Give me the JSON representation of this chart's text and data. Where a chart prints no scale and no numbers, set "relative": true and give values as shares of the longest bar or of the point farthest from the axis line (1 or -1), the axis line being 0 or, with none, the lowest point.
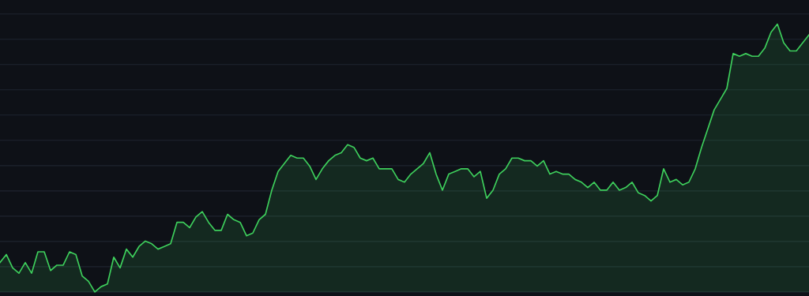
{
  "chart_data": {
    "type": "area",
    "relative": true,
    "grid": "y",
    "categories": [
      null,
      null,
      null,
      null,
      null,
      null,
      null,
      null,
      null,
      null,
      null,
      null,
      null,
      null,
      null,
      null,
      null,
      null,
      null,
      null,
      null,
      null,
      null,
      null,
      null,
      null,
      null,
      null,
      null,
      null,
      null,
      null,
      null,
      null,
      null,
      null,
      null,
      null,
      null,
      null,
      null,
      null,
      null,
      null,
      null,
      null,
      null,
      null,
      null,
      null,
      null,
      null,
      null,
      null,
      null,
      null,
      null,
      null,
      null,
      null,
      null,
      null,
      null,
      null,
      null,
      null,
      null,
      null,
      null,
      null,
      null,
      null,
      null,
      null,
      null,
      null,
      null,
      null,
      null,
      null,
      null,
      null,
      null,
      null,
      null,
      null,
      null,
      null,
      null,
      null,
      null,
      null,
      null,
      null,
      null,
      null,
      null,
      null,
      null,
      null,
      null,
      null,
      null,
      null,
      null,
      null,
      null,
      null,
      null,
      null,
      null,
      null,
      null,
      null,
      null,
      null,
      null,
      null,
      null,
      null,
      null,
      null,
      null,
      null,
      null,
      null,
      null,
      null,
      null
    ],
    "series": [
      {
        "color": "#3ecf5c",
        "values": [
          0.11,
          0.14,
          0.09,
          0.07,
          0.11,
          0.07,
          0.15,
          0.15,
          0.08,
          0.1,
          0.1,
          0.15,
          0.14,
          0.06,
          0.04,
          0.0,
          0.02,
          0.03,
          0.13,
          0.09,
          0.16,
          0.13,
          0.17,
          0.19,
          0.18,
          0.16,
          0.17,
          0.18,
          0.26,
          0.26,
          0.24,
          0.28,
          0.3,
          0.26,
          0.23,
          0.23,
          0.29,
          0.27,
          0.26,
          0.21,
          0.22,
          0.27,
          0.29,
          0.38,
          0.45,
          0.48,
          0.51,
          0.5,
          0.5,
          0.47,
          0.42,
          0.46,
          0.49,
          0.51,
          0.52,
          0.55,
          0.54,
          0.5,
          0.49,
          0.5,
          0.46,
          0.46,
          0.46,
          0.42,
          0.41,
          0.44,
          0.46,
          0.48,
          0.52,
          0.44,
          0.38,
          0.44,
          0.45,
          0.46,
          0.46,
          0.43,
          0.45,
          0.35,
          0.38,
          0.44,
          0.46,
          0.5,
          0.5,
          0.49,
          0.49,
          0.47,
          0.49,
          0.44,
          0.45,
          0.44,
          0.44,
          0.42,
          0.41,
          0.39,
          0.41,
          0.38,
          0.38,
          0.41,
          0.38,
          0.39,
          0.41,
          0.37,
          0.36,
          0.34,
          0.36,
          0.46,
          0.41,
          0.42,
          0.4,
          0.41,
          0.46,
          0.54,
          0.61,
          0.68,
          0.72,
          0.76,
          0.89,
          0.88,
          0.89,
          0.88,
          0.88,
          0.91,
          0.97,
          1.0,
          0.93,
          0.9,
          0.9,
          0.93,
          0.96
        ]
      }
    ]
  }
}
